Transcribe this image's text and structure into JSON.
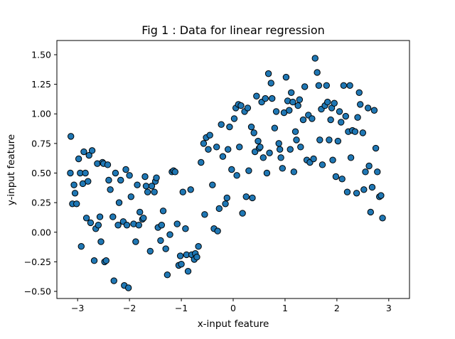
{
  "chart_data": {
    "type": "scatter",
    "title": "Fig 1 : Data for linear regression",
    "xlabel": "x-input feature",
    "ylabel": "y-input feature",
    "xlim": [
      -3.4,
      3.4
    ],
    "ylim": [
      -0.56,
      1.62
    ],
    "grid": false,
    "x_ticks": [
      -3,
      -2,
      -1,
      0,
      1,
      2,
      3
    ],
    "x_tick_labels": [
      "−3",
      "−2",
      "−1",
      "0",
      "1",
      "2",
      "3"
    ],
    "y_ticks": [
      -0.5,
      -0.25,
      0.0,
      0.25,
      0.5,
      0.75,
      1.0,
      1.25,
      1.5
    ],
    "y_tick_labels": [
      "−0.50",
      "−0.25",
      "0.00",
      "0.25",
      "0.50",
      "0.75",
      "1.00",
      "1.25",
      "1.50"
    ],
    "marker_color": "#1f77b4",
    "marker_edge_color": "#000000",
    "points": [
      [
        -3.13,
        0.81
      ],
      [
        -3.14,
        0.5
      ],
      [
        -3.1,
        0.24
      ],
      [
        -3.07,
        0.4
      ],
      [
        -3.05,
        0.33
      ],
      [
        -3.02,
        0.24
      ],
      [
        -2.98,
        0.62
      ],
      [
        -2.95,
        0.5
      ],
      [
        -2.93,
        -0.12
      ],
      [
        -2.9,
        0.41
      ],
      [
        -2.88,
        0.68
      ],
      [
        -2.85,
        0.5
      ],
      [
        -2.83,
        0.12
      ],
      [
        -2.8,
        0.43
      ],
      [
        -2.78,
        0.65
      ],
      [
        -2.75,
        0.08
      ],
      [
        -2.72,
        0.69
      ],
      [
        -2.68,
        -0.24
      ],
      [
        -2.65,
        0.03
      ],
      [
        -2.62,
        0.58
      ],
      [
        -2.6,
        0.06
      ],
      [
        -2.57,
        0.13
      ],
      [
        -2.55,
        -0.08
      ],
      [
        -2.52,
        0.59
      ],
      [
        -2.5,
        0.58
      ],
      [
        -2.48,
        -0.25
      ],
      [
        -2.45,
        -0.24
      ],
      [
        -2.42,
        0.57
      ],
      [
        -2.4,
        0.44
      ],
      [
        -2.37,
        0.36
      ],
      [
        -2.32,
        0.13
      ],
      [
        -2.3,
        -0.41
      ],
      [
        -2.27,
        0.5
      ],
      [
        -2.22,
        0.06
      ],
      [
        -2.2,
        0.25
      ],
      [
        -2.17,
        0.44
      ],
      [
        -2.12,
        0.09
      ],
      [
        -2.1,
        -0.45
      ],
      [
        -2.07,
        0.53
      ],
      [
        -2.05,
        0.06
      ],
      [
        -2.02,
        -0.47
      ],
      [
        -2.0,
        0.48
      ],
      [
        -1.97,
        0.3
      ],
      [
        -1.92,
        0.07
      ],
      [
        -1.88,
        -0.08
      ],
      [
        -1.85,
        0.4
      ],
      [
        -1.82,
        0.06
      ],
      [
        -1.8,
        0.17
      ],
      [
        -1.75,
        0.11
      ],
      [
        -1.73,
        0.12
      ],
      [
        -1.7,
        0.47
      ],
      [
        -1.68,
        0.39
      ],
      [
        -1.65,
        0.34
      ],
      [
        -1.6,
        -0.16
      ],
      [
        -1.57,
        0.39
      ],
      [
        -1.52,
        0.34
      ],
      [
        -1.5,
        0.43
      ],
      [
        -1.48,
        0.46
      ],
      [
        -1.45,
        0.04
      ],
      [
        -1.4,
        -0.07
      ],
      [
        -1.38,
        0.06
      ],
      [
        -1.35,
        0.18
      ],
      [
        -1.3,
        -0.14
      ],
      [
        -1.27,
        -0.36
      ],
      [
        -1.22,
        -0.02
      ],
      [
        -1.18,
        0.51
      ],
      [
        -1.15,
        0.52
      ],
      [
        -1.12,
        0.51
      ],
      [
        -1.08,
        0.07
      ],
      [
        -1.05,
        -0.28
      ],
      [
        -1.02,
        -0.2
      ],
      [
        -1.0,
        -0.27
      ],
      [
        -0.97,
        0.34
      ],
      [
        -0.92,
        0.03
      ],
      [
        -0.9,
        -0.19
      ],
      [
        -0.87,
        -0.33
      ],
      [
        -0.82,
        0.36
      ],
      [
        -0.8,
        -0.19
      ],
      [
        -0.75,
        -0.23
      ],
      [
        -0.73,
        -0.18
      ],
      [
        -0.7,
        -0.21
      ],
      [
        -0.67,
        -0.12
      ],
      [
        -0.62,
        0.59
      ],
      [
        -0.57,
        0.75
      ],
      [
        -0.55,
        0.15
      ],
      [
        -0.52,
        0.8
      ],
      [
        -0.48,
        0.7
      ],
      [
        -0.45,
        0.82
      ],
      [
        -0.4,
        0.4
      ],
      [
        -0.37,
        0.03
      ],
      [
        -0.32,
        0.72
      ],
      [
        -0.3,
        0.01
      ],
      [
        -0.27,
        0.2
      ],
      [
        -0.23,
        0.91
      ],
      [
        -0.2,
        0.64
      ],
      [
        -0.15,
        0.24
      ],
      [
        -0.12,
        0.29
      ],
      [
        -0.1,
        0.7
      ],
      [
        -0.07,
        0.89
      ],
      [
        -0.03,
        0.53
      ],
      [
        0.02,
        0.96
      ],
      [
        0.05,
        1.05
      ],
      [
        0.07,
        0.48
      ],
      [
        0.1,
        1.08
      ],
      [
        0.12,
        0.72
      ],
      [
        0.15,
        1.07
      ],
      [
        0.18,
        0.16
      ],
      [
        0.22,
        1.02
      ],
      [
        0.25,
        0.3
      ],
      [
        0.28,
        1.05
      ],
      [
        0.3,
        0.52
      ],
      [
        0.35,
        0.89
      ],
      [
        0.37,
        0.29
      ],
      [
        0.4,
        0.84
      ],
      [
        0.42,
        0.68
      ],
      [
        0.45,
        1.15
      ],
      [
        0.48,
        0.77
      ],
      [
        0.5,
        0.71
      ],
      [
        0.52,
        0.72
      ],
      [
        0.55,
        1.1
      ],
      [
        0.58,
        0.63
      ],
      [
        0.62,
        1.13
      ],
      [
        0.65,
        0.5
      ],
      [
        0.68,
        1.34
      ],
      [
        0.7,
        0.67
      ],
      [
        0.73,
        1.26
      ],
      [
        0.75,
        1.13
      ],
      [
        0.8,
        0.88
      ],
      [
        0.83,
        1.02
      ],
      [
        0.88,
        0.75
      ],
      [
        0.9,
        0.7
      ],
      [
        0.92,
        0.63
      ],
      [
        0.95,
        0.54
      ],
      [
        0.98,
        1.01
      ],
      [
        1.02,
        1.31
      ],
      [
        1.05,
        1.11
      ],
      [
        1.08,
        1.03
      ],
      [
        1.1,
        0.7
      ],
      [
        1.12,
        1.18
      ],
      [
        1.15,
        1.1
      ],
      [
        1.17,
        0.51
      ],
      [
        1.2,
        0.85
      ],
      [
        1.22,
        0.78
      ],
      [
        1.25,
        1.07
      ],
      [
        1.28,
        1.12
      ],
      [
        1.3,
        0.72
      ],
      [
        1.35,
        0.95
      ],
      [
        1.38,
        1.23
      ],
      [
        1.42,
        0.61
      ],
      [
        1.45,
        0.99
      ],
      [
        1.48,
        0.59
      ],
      [
        1.52,
        0.96
      ],
      [
        1.55,
        0.62
      ],
      [
        1.58,
        1.47
      ],
      [
        1.62,
        1.35
      ],
      [
        1.65,
        1.24
      ],
      [
        1.67,
        0.78
      ],
      [
        1.7,
        1.04
      ],
      [
        1.72,
        0.57
      ],
      [
        1.77,
        1.07
      ],
      [
        1.8,
        1.24
      ],
      [
        1.82,
        1.1
      ],
      [
        1.85,
        0.78
      ],
      [
        1.88,
        0.95
      ],
      [
        1.9,
        1.05
      ],
      [
        1.92,
        0.61
      ],
      [
        1.95,
        1.09
      ],
      [
        1.98,
        0.47
      ],
      [
        2.02,
        0.77
      ],
      [
        2.05,
        1.02
      ],
      [
        2.08,
        0.93
      ],
      [
        2.1,
        0.45
      ],
      [
        2.13,
        1.24
      ],
      [
        2.17,
        0.98
      ],
      [
        2.2,
        0.34
      ],
      [
        2.22,
        0.85
      ],
      [
        2.25,
        1.24
      ],
      [
        2.27,
        0.63
      ],
      [
        2.3,
        0.86
      ],
      [
        2.35,
        0.85
      ],
      [
        2.38,
        0.33
      ],
      [
        2.4,
        0.97
      ],
      [
        2.43,
        1.18
      ],
      [
        2.45,
        1.08
      ],
      [
        2.5,
        0.84
      ],
      [
        2.52,
        0.36
      ],
      [
        2.55,
        0.51
      ],
      [
        2.6,
        1.05
      ],
      [
        2.62,
        0.56
      ],
      [
        2.65,
        0.17
      ],
      [
        2.68,
        0.38
      ],
      [
        2.72,
        1.03
      ],
      [
        2.75,
        0.71
      ],
      [
        2.78,
        0.51
      ],
      [
        2.82,
        0.3
      ],
      [
        2.85,
        0.31
      ],
      [
        2.88,
        0.12
      ]
    ]
  }
}
